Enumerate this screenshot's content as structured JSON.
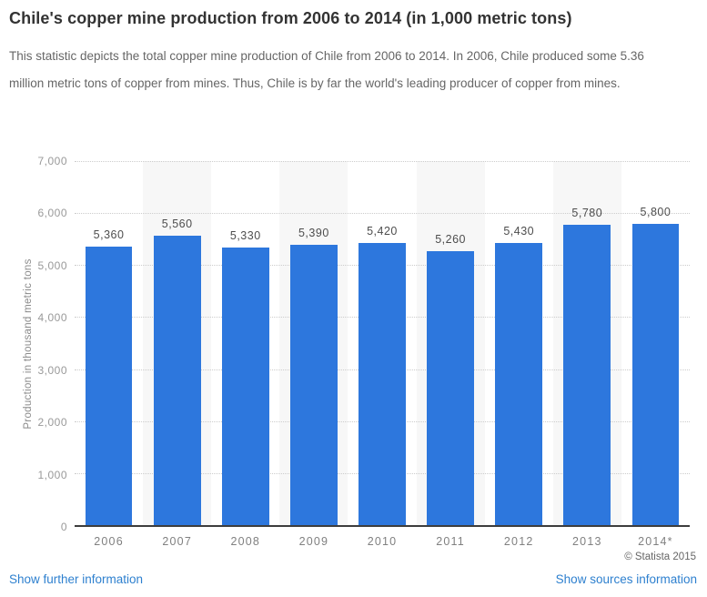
{
  "header": {
    "title": "Chile's copper mine production from 2006 to 2014 (in 1,000 metric tons)",
    "description": "This statistic depicts the total copper mine production of Chile from 2006 to 2014. In 2006, Chile produced some 5.36 million metric tons of copper from mines. Thus, Chile is by far the world's leading producer of copper from mines."
  },
  "chart_data": {
    "type": "bar",
    "title": "Chile's copper mine production from 2006 to 2014 (in 1,000 metric tons)",
    "categories": [
      "2006",
      "2007",
      "2008",
      "2009",
      "2010",
      "2011",
      "2012",
      "2013",
      "2014*"
    ],
    "values": [
      5360,
      5560,
      5330,
      5390,
      5420,
      5260,
      5430,
      5780,
      5800
    ],
    "bar_labels": [
      "5,360",
      "5,560",
      "5,330",
      "5,390",
      "5,420",
      "5,260",
      "5,430",
      "5,780",
      "5,800"
    ],
    "xlabel": "",
    "ylabel": "Production in thousand metric tons",
    "ylim": [
      0,
      7000
    ],
    "yticks": [
      0,
      1000,
      2000,
      3000,
      4000,
      5000,
      6000,
      7000
    ],
    "ytick_labels": [
      "0",
      "1,000",
      "2,000",
      "3,000",
      "4,000",
      "5,000",
      "6,000",
      "7,000"
    ],
    "grid": "horizontal-dotted",
    "legend": "none",
    "band_pattern": "alternating columns, odd years shaded",
    "colors": {
      "bar": "#2d77dd",
      "band": "#f7f7f7",
      "gridline": "#cccccc",
      "axis_line": "#3d3d3d",
      "value_label": "#4d4d4d",
      "ytick_label": "#999999",
      "xtick_label": "#808080",
      "title": "#333333",
      "description": "#666666",
      "link": "#2e80cf"
    }
  },
  "footer": {
    "copyright": "© Statista 2015",
    "further_link": "Show further information",
    "sources_link": "Show sources information"
  }
}
